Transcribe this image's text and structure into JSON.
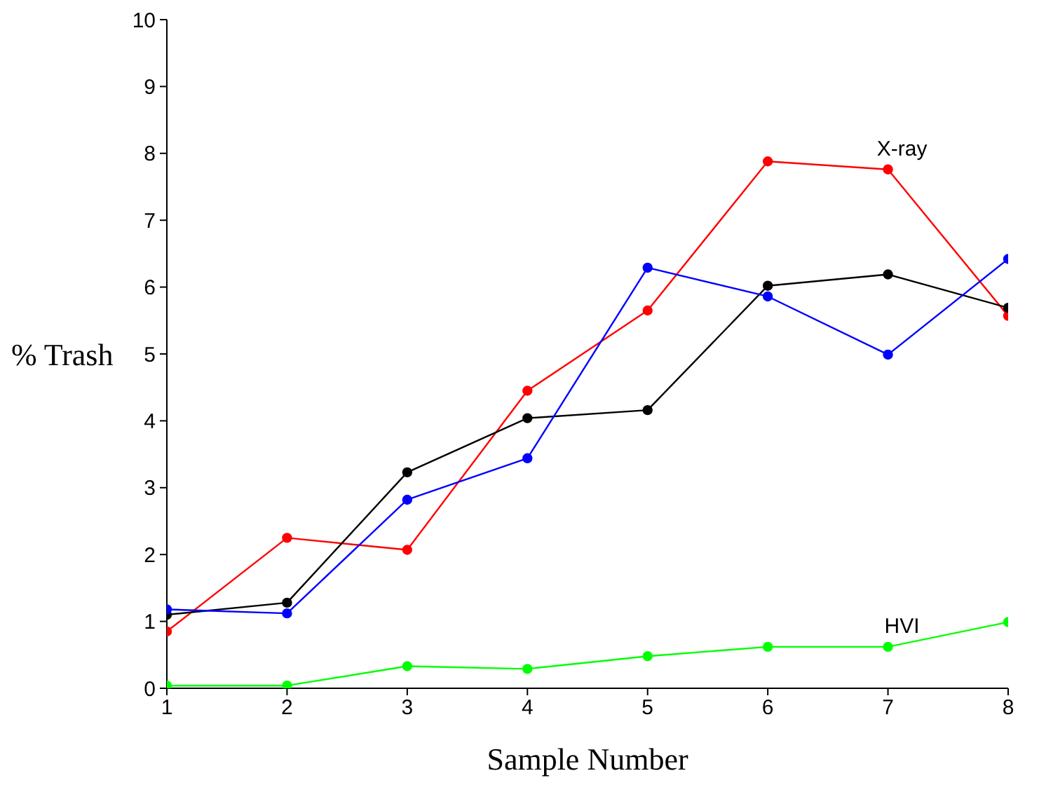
{
  "chart_data": {
    "type": "line",
    "xlabel": "Sample Number",
    "ylabel": "% Trash",
    "x": [
      1,
      2,
      3,
      4,
      5,
      6,
      7,
      8
    ],
    "series": [
      {
        "name": "X-ray",
        "color": "#ff0000",
        "values": [
          0.85,
          2.25,
          2.07,
          4.45,
          5.65,
          7.88,
          7.76,
          5.57
        ]
      },
      {
        "color": "#000000",
        "values": [
          1.1,
          1.28,
          3.23,
          4.04,
          4.16,
          6.02,
          6.19,
          5.69
        ]
      },
      {
        "color": "#0000ff",
        "values": [
          1.18,
          1.12,
          2.82,
          3.44,
          6.29,
          5.86,
          4.99,
          6.42
        ]
      },
      {
        "name": "HVI",
        "color": "#00ff00",
        "values": [
          0.04,
          0.04,
          0.33,
          0.29,
          0.48,
          0.62,
          0.62,
          0.99
        ]
      }
    ],
    "xlim": [
      1,
      8
    ],
    "xticks": [
      1,
      2,
      3,
      4,
      5,
      6,
      7,
      8
    ],
    "ylim": [
      0,
      10
    ],
    "yticks": [
      0,
      1,
      2,
      3,
      4,
      5,
      6,
      7,
      8,
      9,
      10
    ],
    "grid": false,
    "legend": false,
    "marker": "circle",
    "line_style": "solid"
  }
}
